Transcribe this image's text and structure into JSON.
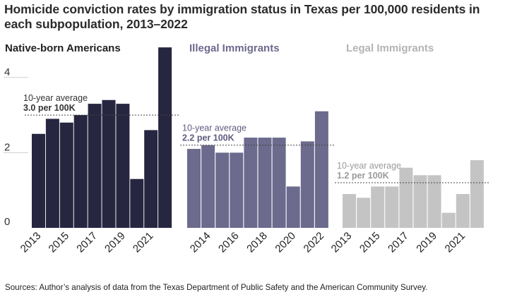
{
  "title": "Homicide conviction rates by immigration status in Texas per 100,000 residents in each subpopulation, 2013–2022",
  "source": "Sources: Author’s analysis of data from the Texas Department of Public Safety and the American Community Survey.",
  "chart_data": [
    {
      "type": "bar",
      "title": "Native-born Americans",
      "color": "#272640",
      "x": [
        2013,
        2014,
        2015,
        2016,
        2017,
        2018,
        2019,
        2020,
        2021,
        2022
      ],
      "x_tick_labels": [
        "2013",
        "2015",
        "2017",
        "2019",
        "2021"
      ],
      "values": [
        2.5,
        2.9,
        2.8,
        3.0,
        3.3,
        3.4,
        3.3,
        1.3,
        2.6,
        4.8
      ],
      "average": 3.0,
      "average_label": "10-year average",
      "average_value_label": "3.0 per 100K",
      "ylim": [
        0,
        5
      ],
      "y_ticks": [
        "0",
        "2",
        "4"
      ]
    },
    {
      "type": "bar",
      "title": "Illegal Immigrants",
      "color": "#6c6a8d",
      "x": [
        2013,
        2014,
        2015,
        2016,
        2017,
        2018,
        2019,
        2020,
        2021,
        2022
      ],
      "x_tick_labels": [
        "2014",
        "2016",
        "2018",
        "2020",
        "2022"
      ],
      "values": [
        2.1,
        2.2,
        2.0,
        2.0,
        2.4,
        2.4,
        2.4,
        1.1,
        2.3,
        3.1
      ],
      "average": 2.2,
      "average_label": "10-year average",
      "average_value_label": "2.2 per 100K",
      "ylim": [
        0,
        5
      ]
    },
    {
      "type": "bar",
      "title": "Legal Immigrants",
      "color": "#c4c4c4",
      "x": [
        2013,
        2014,
        2015,
        2016,
        2017,
        2018,
        2019,
        2020,
        2021,
        2022
      ],
      "x_tick_labels": [
        "2013",
        "2015",
        "2017",
        "2019",
        "2021"
      ],
      "values": [
        0.9,
        0.8,
        1.1,
        1.1,
        1.6,
        1.4,
        1.4,
        0.4,
        0.9,
        1.8
      ],
      "average": 1.2,
      "average_label": "10-year average",
      "average_value_label": "1.2 per 100K",
      "ylim": [
        0,
        5
      ]
    }
  ]
}
